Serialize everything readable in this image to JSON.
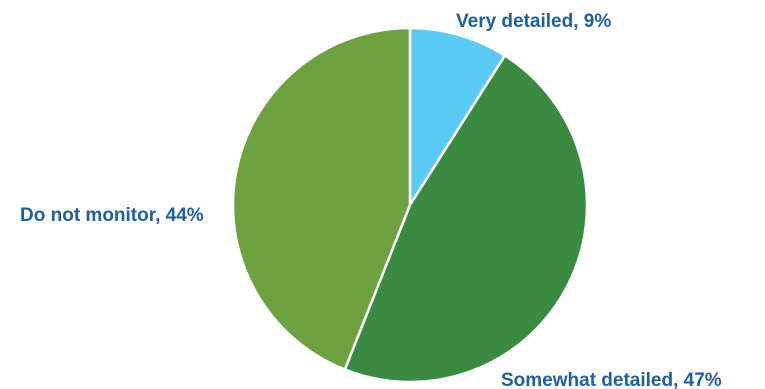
{
  "chart_data": {
    "type": "pie",
    "title": "",
    "legend": "none",
    "start_angle_deg": 0,
    "direction": "clockwise",
    "label_color": "#1f5f9f",
    "slices": [
      {
        "label": "Very detailed",
        "value": 9,
        "display": "Very detailed, 9%",
        "color": "#5bcbf5"
      },
      {
        "label": "Somewhat detailed",
        "value": 47,
        "display": "Somewhat detailed, 47%",
        "color": "#3a8a42"
      },
      {
        "label": "Do not monitor",
        "value": 44,
        "display": "Do not monitor, 44%",
        "color": "#6ea241"
      }
    ]
  }
}
